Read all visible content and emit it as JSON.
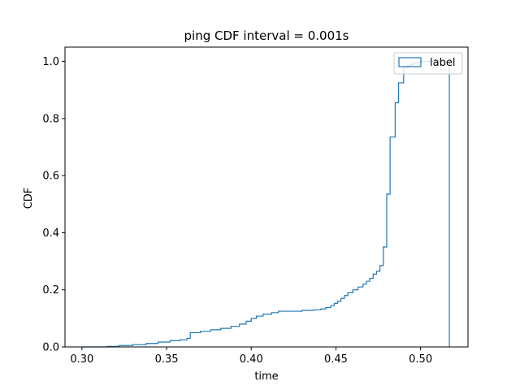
{
  "chart_data": {
    "type": "line",
    "style": "step histogram (cumulative)",
    "title": "ping CDF interval = 0.001s",
    "xlabel": "time",
    "ylabel": "CDF",
    "xlim": [
      0.29,
      0.528
    ],
    "ylim": [
      0.0,
      1.05
    ],
    "xticks": [
      0.3,
      0.35,
      0.4,
      0.45,
      0.5
    ],
    "xtick_labels": [
      "0.30",
      "0.35",
      "0.40",
      "0.45",
      "0.50"
    ],
    "yticks": [
      0.0,
      0.2,
      0.4,
      0.6,
      0.8,
      1.0
    ],
    "ytick_labels": [
      "0.0",
      "0.2",
      "0.4",
      "0.6",
      "0.8",
      "1.0"
    ],
    "grid": false,
    "legend": {
      "placement": "top-right",
      "entries": [
        "label"
      ]
    },
    "series": [
      {
        "name": "label",
        "color": "#1f77b4",
        "x": [
          0.3,
          0.315,
          0.322,
          0.33,
          0.338,
          0.345,
          0.352,
          0.358,
          0.362,
          0.364,
          0.37,
          0.376,
          0.382,
          0.388,
          0.393,
          0.397,
          0.4,
          0.403,
          0.407,
          0.412,
          0.416,
          0.43,
          0.437,
          0.441,
          0.444,
          0.447,
          0.449,
          0.451,
          0.453,
          0.455,
          0.457,
          0.46,
          0.463,
          0.466,
          0.468,
          0.47,
          0.472,
          0.474,
          0.476,
          0.478,
          0.48,
          0.481,
          0.482,
          0.484,
          0.485,
          0.487,
          0.488,
          0.49,
          0.492,
          0.494,
          0.496,
          0.5,
          0.508,
          0.517
        ],
        "y": [
          0.0,
          0.002,
          0.005,
          0.008,
          0.012,
          0.017,
          0.022,
          0.025,
          0.03,
          0.05,
          0.055,
          0.06,
          0.065,
          0.072,
          0.08,
          0.09,
          0.1,
          0.108,
          0.115,
          0.12,
          0.125,
          0.128,
          0.13,
          0.133,
          0.138,
          0.145,
          0.153,
          0.16,
          0.17,
          0.18,
          0.19,
          0.2,
          0.21,
          0.22,
          0.23,
          0.24,
          0.255,
          0.265,
          0.285,
          0.35,
          0.535,
          0.535,
          0.735,
          0.735,
          0.855,
          0.925,
          0.925,
          0.98,
          0.985,
          0.99,
          0.995,
          1.0,
          1.0,
          0.0
        ]
      }
    ]
  }
}
